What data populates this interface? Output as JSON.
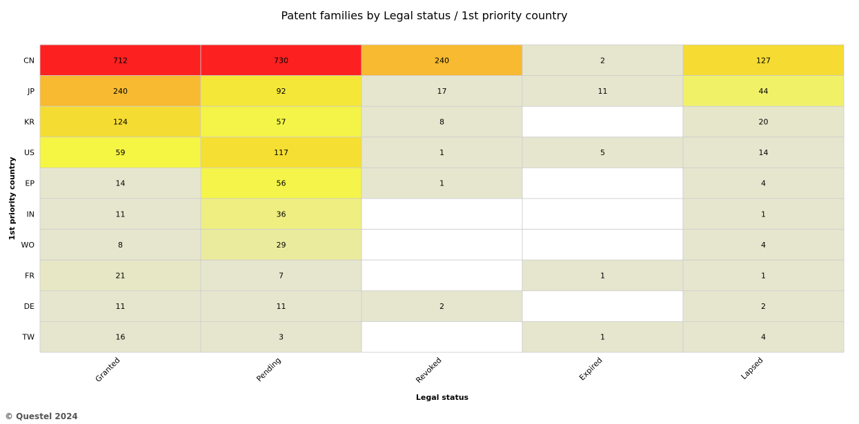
{
  "chart_data": {
    "type": "heatmap",
    "title": "Patent families by Legal status / 1st priority country",
    "xlabel": "Legal status",
    "ylabel": "1st priority country",
    "columns": [
      "Granted",
      "Pending",
      "Revoked",
      "Expired",
      "Lapsed"
    ],
    "rows": [
      "CN",
      "JP",
      "KR",
      "US",
      "EP",
      "IN",
      "WO",
      "FR",
      "DE",
      "TW"
    ],
    "values": [
      [
        712,
        730,
        240,
        2,
        127
      ],
      [
        240,
        92,
        17,
        11,
        44
      ],
      [
        124,
        57,
        8,
        null,
        20
      ],
      [
        59,
        117,
        1,
        5,
        14
      ],
      [
        14,
        56,
        1,
        null,
        4
      ],
      [
        11,
        36,
        null,
        null,
        1
      ],
      [
        8,
        29,
        null,
        null,
        4
      ],
      [
        21,
        7,
        null,
        1,
        1
      ],
      [
        11,
        11,
        2,
        null,
        2
      ],
      [
        16,
        3,
        null,
        1,
        4
      ]
    ],
    "colors": {
      "empty": "#ffffff",
      "low": "#e6e6cf",
      "yellow": "#f5f542",
      "mid": "#f5e032",
      "orange": "#f7bb30",
      "high": "#fc2020",
      "grid": "#cccccc"
    }
  },
  "footer": {
    "copyright": "© Questel 2024"
  }
}
